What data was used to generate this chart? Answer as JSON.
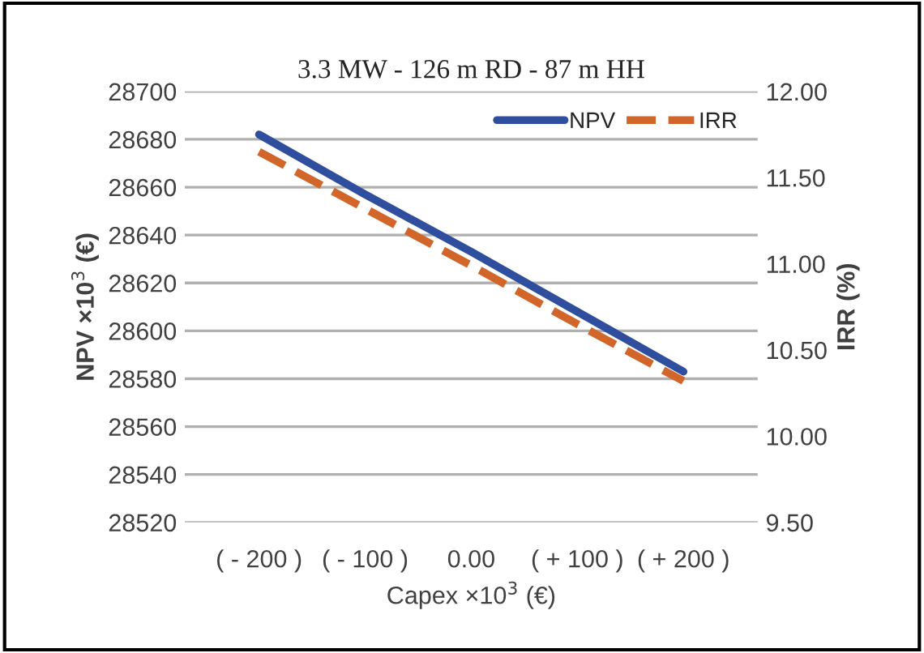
{
  "chart_data": {
    "type": "line",
    "title": "3.3 MW - 126 m RD - 87 m HH",
    "xlabel": "Capex ×10$^{3}$ (€)",
    "ylabel": "NPV ×10$^{3}$ (€)",
    "y2label": "IRR (%)",
    "categories": [
      "( - 200 )",
      "( - 100 )",
      "0.00",
      "( + 100 )",
      "( + 200 )"
    ],
    "series": [
      {
        "name": "NPV",
        "color": "#2f4f9e",
        "values": [
          28682,
          28657,
          28633,
          28608,
          28583
        ],
        "line_style": "solid"
      },
      {
        "name": "IRR",
        "color": "#d2652a",
        "values": [
          11.65,
          11.32,
          10.99,
          10.65,
          10.32
        ],
        "axis": "y2",
        "line_style": "dashed"
      }
    ],
    "ylim": [
      28520,
      28700
    ],
    "yticks": [
      28520,
      28540,
      28560,
      28580,
      28600,
      28620,
      28640,
      28660,
      28680,
      28700
    ],
    "y2lim": [
      9.5,
      12.0
    ],
    "y2ticks": [
      {
        "value": 9.5,
        "label": "9.50"
      },
      {
        "value": 10.0,
        "label": "10.00"
      },
      {
        "value": 10.5,
        "label": "10.50"
      },
      {
        "value": 11.0,
        "label": "11.00"
      },
      {
        "value": 11.5,
        "label": "11.50"
      },
      {
        "value": 12.0,
        "label": "12.00"
      }
    ],
    "grid": "y",
    "legend": "top right",
    "marker": "none"
  }
}
